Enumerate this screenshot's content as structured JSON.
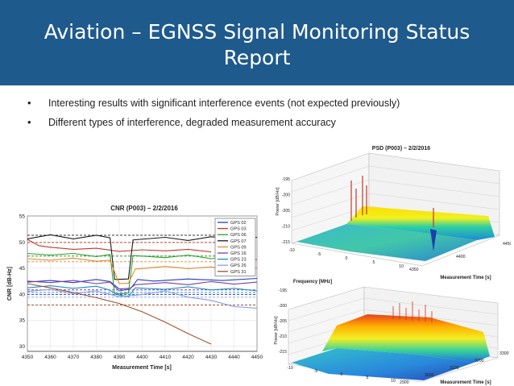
{
  "slide": {
    "title_line1": "Aviation – EGNSS Signal Monitoring Status",
    "title_line2": "Report",
    "bullets": [
      "Interesting results with significant interference events (not expected previously)",
      "Different types of interference, degraded measurement accuracy"
    ],
    "bullet_symbol": "•",
    "header_color": "#1f5a8c"
  },
  "chart_data": [
    {
      "type": "line",
      "title": "CNR (P003) – 2/2/2016",
      "xlabel": "Measurement Time [s]",
      "ylabel": "CNR [dB-Hz]",
      "xlim": [
        4350,
        4450
      ],
      "ylim": [
        29,
        55
      ],
      "xticks": [
        4350,
        4360,
        4370,
        4380,
        4390,
        4400,
        4410,
        4420,
        4430,
        4440,
        4450
      ],
      "yticks": [
        30,
        35,
        40,
        45,
        50,
        55
      ],
      "grid": true,
      "legend_position": "top-right",
      "series": [
        {
          "name": "GPS 02",
          "color": "#1f3fbf",
          "x": [
            4350,
            4360,
            4370,
            4380,
            4386,
            4390,
            4395,
            4398,
            4405,
            4420,
            4435,
            4450
          ],
          "y": [
            42.3,
            42.6,
            42.2,
            42.8,
            42.4,
            41.0,
            41.1,
            42.8,
            42.5,
            42.9,
            42.6,
            43.0
          ]
        },
        {
          "name": "GPS 03",
          "color": "#c0392b",
          "x": [
            4350,
            4355,
            4360,
            4370,
            4380,
            4390,
            4400,
            4410,
            4420,
            4430
          ],
          "y": [
            50.5,
            49.3,
            49.0,
            48.6,
            48.8,
            48.2,
            48.5,
            48.3,
            48.6,
            48.1
          ]
        },
        {
          "name": "GPS 06",
          "color": "#2e9e2e",
          "x": [
            4350,
            4360,
            4370,
            4380,
            4386,
            4388,
            4394,
            4396,
            4410,
            4420,
            4430,
            4440,
            4450
          ],
          "y": [
            47.8,
            47.5,
            47.8,
            47.2,
            47.6,
            40.0,
            40.2,
            47.4,
            47.0,
            47.5,
            46.8,
            47.2,
            46.6
          ]
        },
        {
          "name": "GPS 07",
          "color": "#1a1a1a",
          "x": [
            4350,
            4360,
            4370,
            4380,
            4386,
            4388,
            4394,
            4396,
            4410,
            4420,
            4430,
            4440,
            4450
          ],
          "y": [
            50.6,
            51.4,
            50.6,
            51.3,
            50.8,
            42.8,
            42.9,
            50.4,
            50.9,
            50.3,
            51.0,
            50.6,
            50.9
          ]
        },
        {
          "name": "GPS 09",
          "color": "#e08a2e",
          "x": [
            4350,
            4360,
            4370,
            4380,
            4386,
            4390,
            4394,
            4397,
            4410,
            4420,
            4430,
            4440,
            4450
          ],
          "y": [
            46.8,
            46.5,
            46.9,
            46.3,
            46.5,
            42.0,
            42.1,
            44.8,
            45.3,
            44.9,
            45.2,
            44.6,
            45.0
          ]
        },
        {
          "name": "GPS 16",
          "color": "#7a3fa8",
          "x": [
            4350,
            4360,
            4370,
            4380,
            4386,
            4390,
            4394,
            4397,
            4410,
            4420,
            4430,
            4440,
            4450
          ],
          "y": [
            42.5,
            42.2,
            42.6,
            42.0,
            42.3,
            40.6,
            40.9,
            41.8,
            42.2,
            41.8,
            42.4,
            41.9,
            42.3
          ]
        },
        {
          "name": "GPS 23",
          "color": "#1a8fbf",
          "x": [
            4350,
            4360,
            4370,
            4380,
            4385,
            4390,
            4394,
            4397,
            4410,
            4420,
            4430,
            4440,
            4450
          ],
          "y": [
            41.2,
            41.6,
            41.1,
            41.5,
            40.9,
            39.8,
            39.5,
            41.2,
            40.9,
            41.4,
            40.8,
            41.1,
            40.6
          ]
        },
        {
          "name": "GPS 26",
          "color": "#8a9cf0",
          "x": [
            4350,
            4360,
            4370,
            4380,
            4390,
            4400,
            4410,
            4420,
            4430,
            4440,
            4450
          ],
          "y": [
            40.5,
            40.9,
            40.1,
            40.6,
            39.5,
            39.9,
            40.6,
            39.4,
            38.8,
            37.6,
            37.3
          ]
        },
        {
          "name": "GPS 31",
          "color": "#a0522d",
          "x": [
            4350,
            4360,
            4370,
            4380,
            4390,
            4400,
            4410,
            4420,
            4430
          ],
          "y": [
            42.0,
            41.2,
            40.3,
            39.3,
            38.2,
            36.6,
            34.6,
            32.4,
            30.4
          ]
        }
      ],
      "reference_lines": [
        51.3,
        49.9,
        47.3,
        46.2,
        40.8,
        40.3,
        39.9,
        39.4,
        37.9
      ]
    },
    {
      "type": "surface",
      "title": "PSD (P003) – 2/2/2016",
      "xlabel": "Frequency [MHz]",
      "ylabel": "Measurement Time [s]",
      "zlabel": "Power [dB/Hz]",
      "x_ticks": [
        -10,
        -5,
        0,
        5,
        10
      ],
      "y_ticks": [
        4350,
        4400,
        4450
      ],
      "z_ticks": [
        -195,
        -200,
        -205,
        -210,
        -215
      ]
    },
    {
      "type": "surface",
      "title": "",
      "xlabel": "Frequency [MHz]",
      "ylabel": "Measurement Time [s]",
      "zlabel": "Power [dB/Hz]",
      "x_ticks": [
        -10,
        -5,
        0,
        5,
        10
      ],
      "y_ticks": [
        2900,
        3000,
        3100,
        3200,
        3300
      ],
      "z_ticks": [
        -195,
        -200,
        -205,
        -210,
        -215
      ]
    }
  ]
}
